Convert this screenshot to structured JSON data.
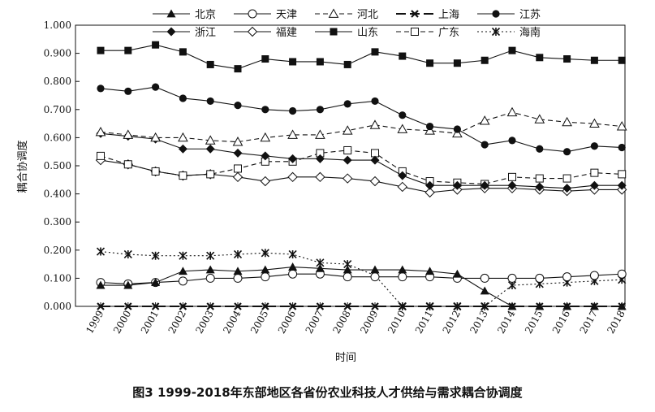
{
  "caption": "图3 1999-2018年东部地区各省份农业科技人才供给与需求耦合协调度",
  "chart_data": {
    "type": "line",
    "title": "图3 1999-2018年东部地区各省份农业科技人才供给与需求耦合协调度",
    "xlabel": "时间",
    "ylabel": "耦合协调度",
    "ylim": [
      0,
      1
    ],
    "yticks": [
      "0.000",
      "0.100",
      "0.200",
      "0.300",
      "0.400",
      "0.500",
      "0.600",
      "0.700",
      "0.800",
      "0.900",
      "1.000"
    ],
    "x": [
      "1999",
      "2000",
      "2001",
      "2002",
      "2003",
      "2004",
      "2005",
      "2006",
      "2007",
      "2008",
      "2009",
      "2010",
      "2011",
      "2012",
      "2013",
      "2014",
      "2015",
      "2016",
      "2017",
      "2018"
    ],
    "legend_position": "top",
    "grid": false,
    "series": [
      {
        "name": "北京",
        "marker": "triangle-filled",
        "dash": "solid",
        "values": [
          0.075,
          0.075,
          0.085,
          0.125,
          0.13,
          0.125,
          0.13,
          0.14,
          0.135,
          0.13,
          0.13,
          0.13,
          0.125,
          0.115,
          0.055,
          0.0,
          0.0,
          0.0,
          0.0,
          0.0
        ]
      },
      {
        "name": "天津",
        "marker": "circle-open",
        "dash": "solid",
        "values": [
          0.085,
          0.08,
          0.085,
          0.09,
          0.1,
          0.1,
          0.105,
          0.115,
          0.115,
          0.105,
          0.105,
          0.105,
          0.105,
          0.1,
          0.1,
          0.1,
          0.1,
          0.105,
          0.11,
          0.115
        ]
      },
      {
        "name": "河北",
        "marker": "triangle-open",
        "dash": "dash",
        "values": [
          0.62,
          0.61,
          0.6,
          0.6,
          0.59,
          0.585,
          0.6,
          0.61,
          0.61,
          0.625,
          0.645,
          0.63,
          0.625,
          0.615,
          0.66,
          0.69,
          0.665,
          0.655,
          0.65,
          0.64
        ]
      },
      {
        "name": "上海",
        "marker": "cross-bold",
        "dash": "longdash",
        "values": [
          0.0,
          0.0,
          0.0,
          0.0,
          0.0,
          0.0,
          0.0,
          0.0,
          0.0,
          0.0,
          0.0,
          0.0,
          0.0,
          0.0,
          0.0,
          0.0,
          0.0,
          0.0,
          0.0,
          0.0
        ]
      },
      {
        "name": "江苏",
        "marker": "circle-filled",
        "dash": "solid",
        "values": [
          0.775,
          0.765,
          0.78,
          0.74,
          0.73,
          0.715,
          0.7,
          0.695,
          0.7,
          0.72,
          0.73,
          0.68,
          0.64,
          0.63,
          0.575,
          0.59,
          0.56,
          0.55,
          0.57,
          0.565
        ]
      },
      {
        "name": "浙江",
        "marker": "diamond-filled",
        "dash": "solid",
        "values": [
          0.615,
          0.605,
          0.595,
          0.56,
          0.56,
          0.545,
          0.535,
          0.525,
          0.525,
          0.52,
          0.52,
          0.465,
          0.43,
          0.43,
          0.43,
          0.43,
          0.425,
          0.42,
          0.43,
          0.43
        ]
      },
      {
        "name": "福建",
        "marker": "diamond-open",
        "dash": "solid",
        "values": [
          0.52,
          0.505,
          0.48,
          0.465,
          0.47,
          0.46,
          0.445,
          0.46,
          0.46,
          0.455,
          0.445,
          0.425,
          0.405,
          0.415,
          0.42,
          0.42,
          0.415,
          0.41,
          0.415,
          0.415
        ]
      },
      {
        "name": "山东",
        "marker": "square-filled",
        "dash": "solid",
        "values": [
          0.91,
          0.91,
          0.93,
          0.905,
          0.86,
          0.845,
          0.88,
          0.87,
          0.87,
          0.86,
          0.905,
          0.89,
          0.865,
          0.865,
          0.875,
          0.91,
          0.885,
          0.88,
          0.875,
          0.875
        ]
      },
      {
        "name": "广东",
        "marker": "square-open",
        "dash": "dash",
        "values": [
          0.535,
          0.505,
          0.48,
          0.465,
          0.47,
          0.49,
          0.515,
          0.515,
          0.545,
          0.555,
          0.545,
          0.48,
          0.445,
          0.44,
          0.435,
          0.46,
          0.455,
          0.455,
          0.475,
          0.47
        ]
      },
      {
        "name": "海南",
        "marker": "asterisk",
        "dash": "dot",
        "values": [
          0.195,
          0.185,
          0.18,
          0.18,
          0.18,
          0.185,
          0.19,
          0.185,
          0.155,
          0.15,
          0.11,
          0.0,
          0.0,
          0.0,
          0.0,
          0.075,
          0.08,
          0.085,
          0.09,
          0.095
        ]
      }
    ]
  }
}
